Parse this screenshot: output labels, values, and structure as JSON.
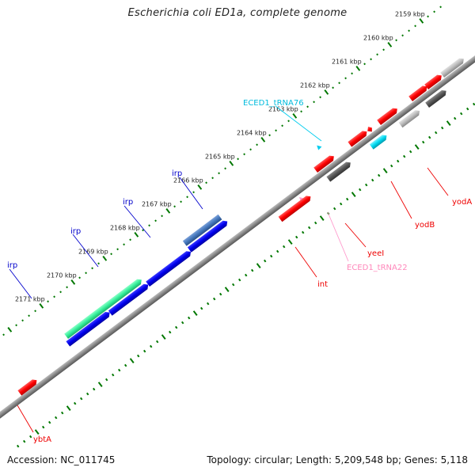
{
  "title": "Escherichia coli ED1a, complete genome",
  "footer": {
    "accession": "Accession: NC_011745",
    "stats": "Topology: circular; Length: 5,209,548 bp; Genes: 5,118"
  },
  "colors": {
    "gene_red": "#ff0000",
    "gene_blue": "#0000ee",
    "gene_green": "#33ee99",
    "gene_steel": "#4477bb",
    "gene_cyan": "#00d8f0",
    "gene_darkgray": "#555555",
    "gene_lightgray": "#bbbbbb",
    "trna_cyan": "#00ccee",
    "trna_pink": "#ff99cc",
    "scale_green": "#007700",
    "backbone": "#888888",
    "irp_label": "#0000cc",
    "gene_label": "#ee0000"
  },
  "kbp_labels": [
    "2159 kbp",
    "2160 kbp",
    "2161 kbp",
    "2162 kbp",
    "2163 kbp",
    "2164 kbp",
    "2165 kbp",
    "2166 kbp",
    "2167 kbp",
    "2168 kbp",
    "2169 kbp",
    "2170 kbp",
    "2171 kbp"
  ],
  "feature_labels": {
    "irp": "irp",
    "trna76": "ECED1_tRNA76",
    "trna22": "ECED1_tRNA22",
    "yodA": "yodA",
    "yodB": "yodB",
    "yeeI": "yeeI",
    "int": "int",
    "ybtA": "ybtA"
  }
}
